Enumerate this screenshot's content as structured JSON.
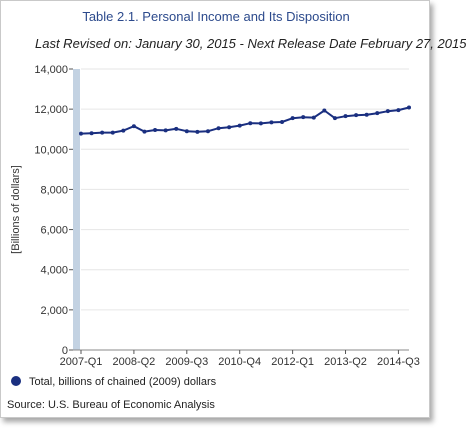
{
  "header": {
    "title": "Table 2.1. Personal Income and Its Disposition",
    "subtitle": "Last Revised on: January 30, 2015 - Next Release Date February 27, 2015"
  },
  "colors": {
    "line": "#1a2f80",
    "axis_bar": "#c3d2e2",
    "grid": "#e6e6e6",
    "title": "#2c4a8c"
  },
  "legend": {
    "label": "Total, billions of chained (2009) dollars"
  },
  "footer": {
    "source": "Source: U.S. Bureau of Economic Analysis"
  },
  "chart_data": {
    "type": "line",
    "title": "Table 2.1. Personal Income and Its Disposition",
    "xlabel": "",
    "ylabel": "[Billions of dollars]",
    "ylim": [
      0,
      14000
    ],
    "yticks": [
      0,
      2000,
      4000,
      6000,
      8000,
      10000,
      12000,
      14000
    ],
    "ytick_labels": [
      "0",
      "2,000",
      "4,000",
      "6,000",
      "8,000",
      "10,000",
      "12,000",
      "14,000"
    ],
    "x": [
      "2007-Q1",
      "2007-Q2",
      "2007-Q3",
      "2007-Q4",
      "2008-Q1",
      "2008-Q2",
      "2008-Q3",
      "2008-Q4",
      "2009-Q1",
      "2009-Q2",
      "2009-Q3",
      "2009-Q4",
      "2010-Q1",
      "2010-Q2",
      "2010-Q3",
      "2010-Q4",
      "2011-Q1",
      "2011-Q2",
      "2011-Q3",
      "2011-Q4",
      "2012-Q1",
      "2012-Q2",
      "2012-Q3",
      "2012-Q4",
      "2013-Q1",
      "2013-Q2",
      "2013-Q3",
      "2013-Q4",
      "2014-Q1",
      "2014-Q2",
      "2014-Q3",
      "2014-Q4"
    ],
    "xtick_labels": [
      "2007-Q1",
      "2008-Q2",
      "2009-Q3",
      "2010-Q4",
      "2012-Q1",
      "2013-Q2",
      "2014-Q3"
    ],
    "grid": true,
    "legend_position": "bottom-left",
    "series": [
      {
        "name": "Total, billions of chained (2009) dollars",
        "values": [
          10780,
          10800,
          10830,
          10830,
          10930,
          11150,
          10880,
          10960,
          10940,
          11020,
          10900,
          10870,
          10900,
          11050,
          11100,
          11180,
          11300,
          11290,
          11340,
          11360,
          11550,
          11600,
          11580,
          11930,
          11550,
          11650,
          11700,
          11720,
          11800,
          11900,
          11950,
          12080
        ]
      }
    ]
  }
}
